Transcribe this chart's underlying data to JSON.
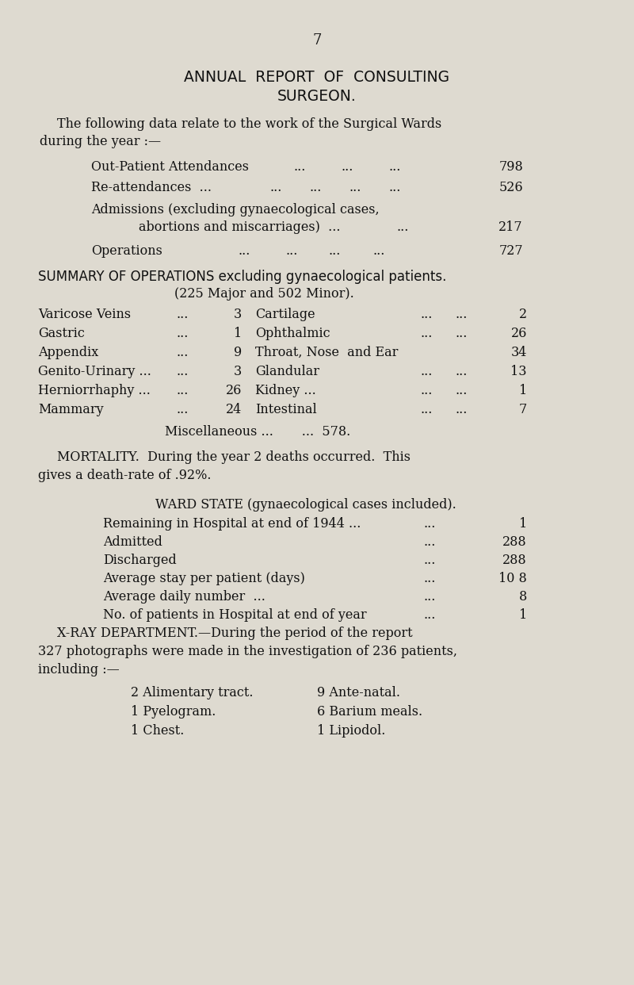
{
  "bg_color": "#dedad0",
  "text_color": "#111111",
  "page_number": "7",
  "title_line1": "ANNUAL  REPORT  OF  CONSULTING",
  "title_line2": "SURGEON.",
  "intro1": "The following data relate to the work of the Surgical Wards",
  "intro2": "during the year :—",
  "summary_title": "SUMMARY OF OPERATIONS excluding gynaecological patients.",
  "summary_sub": "(225 Major and 502 Minor).",
  "misc_line": "Miscellaneous ...       ...  578.",
  "mortality1": "MORTALITY.  During the year 2 deaths occurred.  This",
  "mortality2": "gives a death-rate of .92%.",
  "ward_title": "WARD STATE (gynaecological cases included).",
  "xray1": "X-RAY DEPARTMENT.—During the period of the report",
  "xray2": "327 photographs were made in the investigation of 236 patients,",
  "xray3": "including :—"
}
